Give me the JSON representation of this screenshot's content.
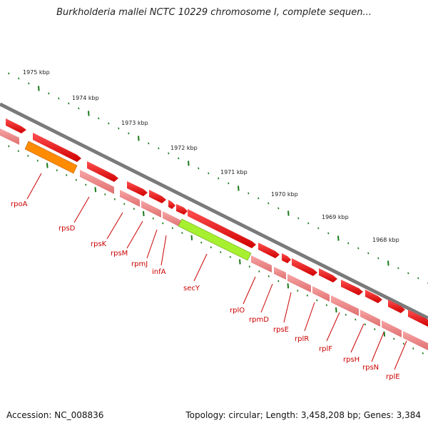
{
  "title": "Burkholderia mallei NCTC 10229 chromosome I, complete sequen...",
  "footer": {
    "accession": "Accession: NC_008836",
    "summary": "Topology: circular; Length: 3,458,208 bp; Genes: 3,384"
  },
  "colors": {
    "backbone": "#7a7a7a",
    "gene": "#ff0000",
    "cds": "#f08080",
    "rRNA_like_orange": "#ff8c00",
    "highlight_green": "#a6f030",
    "tick": "#1a7a1a",
    "label": "#cc0000"
  },
  "kbp_ticks": [
    "1975 kbp",
    "1974 kbp",
    "1973 kbp",
    "1972 kbp",
    "1971 kbp",
    "1970 kbp",
    "1969 kbp",
    "1968 kbp"
  ],
  "gene_labels": [
    "rpoA",
    "rpsD",
    "rpsK",
    "rpsM",
    "rpmJ",
    "infA",
    "secY",
    "rplO",
    "rpmD",
    "rpsE",
    "rplR",
    "rplF",
    "rpsH",
    "rpsN",
    "rplE"
  ]
}
